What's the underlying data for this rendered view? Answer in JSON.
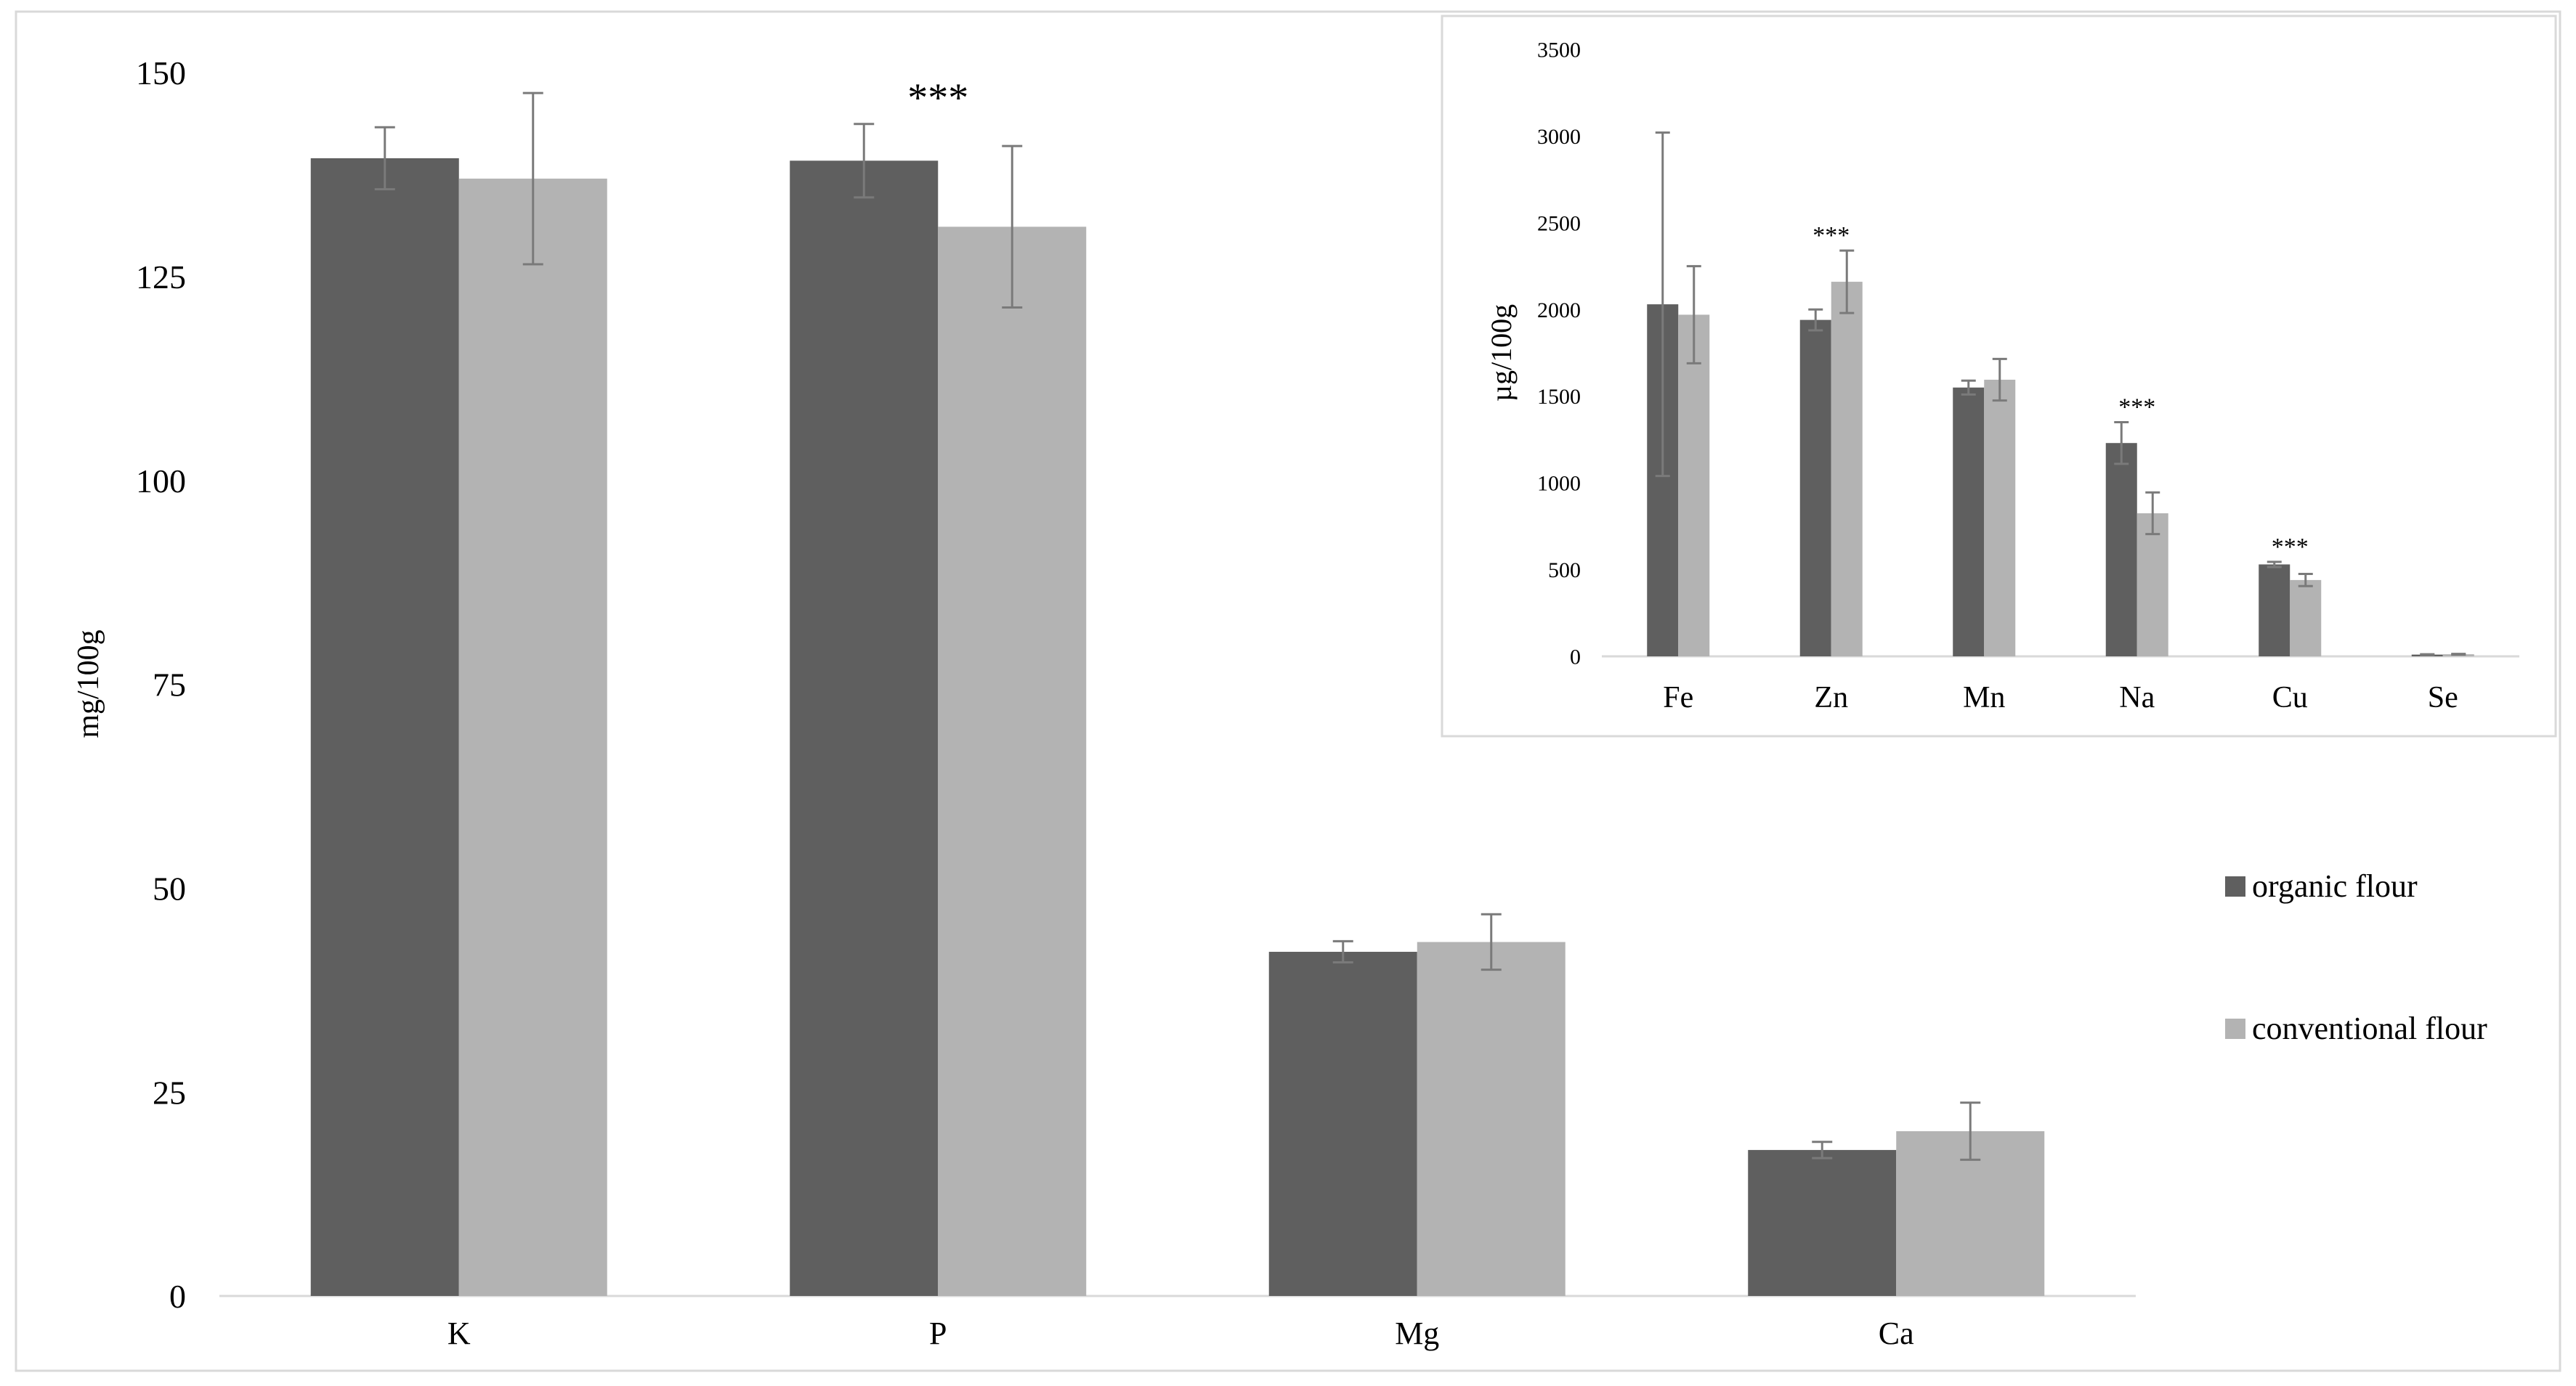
{
  "colors": {
    "organic": "#5f5f5f",
    "conventional": "#b3b3b3",
    "error_bar": "#7a7a7a",
    "axis": "#d9d9d9",
    "frame": "#d9d9d9"
  },
  "legend": {
    "placement": "right",
    "items": [
      "organic flour",
      "conventional flour"
    ]
  },
  "chart_data": [
    {
      "type": "bar",
      "title": "",
      "xlabel": "",
      "ylabel": "mg/100g",
      "ylim": [
        0,
        150
      ],
      "yticks": [
        0,
        25,
        50,
        75,
        100,
        125,
        150
      ],
      "grid": false,
      "categories": [
        "K",
        "P",
        "Mg",
        "Ca"
      ],
      "series": [
        {
          "name": "organic flour",
          "values": [
            139.5,
            139.2,
            42.2,
            17.9
          ],
          "errors": [
            3.8,
            4.5,
            1.3,
            1.0
          ]
        },
        {
          "name": "conventional flour",
          "values": [
            137.0,
            131.1,
            43.4,
            20.2
          ],
          "errors": [
            10.5,
            9.9,
            3.4,
            3.5
          ]
        }
      ],
      "annotations": [
        {
          "category": "P",
          "text": "***"
        }
      ]
    },
    {
      "type": "bar",
      "title": "",
      "xlabel": "",
      "ylabel": "µg/100g",
      "ylim": [
        0,
        3500
      ],
      "yticks": [
        0,
        500,
        1000,
        1500,
        2000,
        2500,
        3000,
        3500
      ],
      "grid": false,
      "categories": [
        "Fe",
        "Zn",
        "Mn",
        "Na",
        "Cu",
        "Se"
      ],
      "series": [
        {
          "name": "organic flour",
          "values": [
            2030,
            1940,
            1550,
            1230,
            530,
            10
          ],
          "errors": [
            990,
            60,
            40,
            120,
            15,
            2
          ]
        },
        {
          "name": "conventional flour",
          "values": [
            1970,
            2160,
            1595,
            825,
            440,
            12
          ],
          "errors": [
            280,
            180,
            120,
            120,
            35,
            2
          ]
        }
      ],
      "annotations": [
        {
          "category": "Zn",
          "text": "***"
        },
        {
          "category": "Na",
          "text": "***"
        },
        {
          "category": "Cu",
          "text": "***"
        }
      ]
    }
  ]
}
